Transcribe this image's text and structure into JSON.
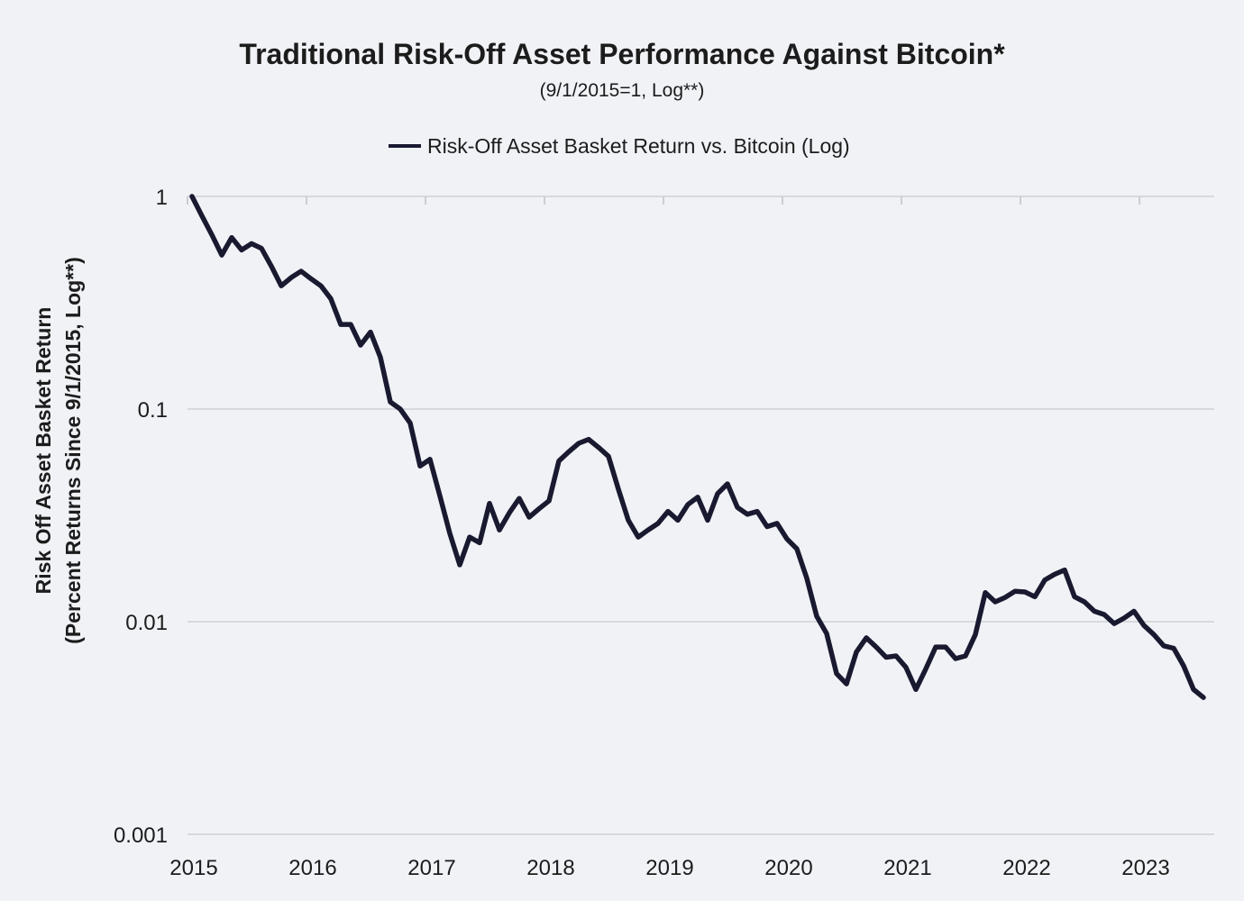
{
  "header": {
    "title": "Traditional Risk-Off Asset Performance Against Bitcoin*",
    "subtitle": "(9/1/2015=1, Log**)"
  },
  "legend": {
    "label": "Risk-Off Asset Basket Return vs. Bitcoin (Log)"
  },
  "y_axis": {
    "title_line1": "Risk Off Asset Basket Return",
    "title_line2": "(Percent Returns Since 9/1/2015, Log**)"
  },
  "colors": {
    "background": "#f1f2f6",
    "gridline": "#d8d9dd",
    "axis_tick": "#cdced4",
    "text": "#1c1c1c",
    "series": "#191930"
  },
  "chart_data": {
    "type": "line",
    "title": "Traditional Risk-Off Asset Performance Against Bitcoin*",
    "subtitle": "(9/1/2015=1, Log**)",
    "ylabel": "Risk Off Asset Basket Return (Percent Returns Since 9/1/2015, Log**)",
    "xlabel": "",
    "y_scale": "log10",
    "ylim": [
      0.001,
      1
    ],
    "y_ticks": [
      1,
      0.1,
      0.01,
      0.001
    ],
    "y_tick_labels": [
      "1",
      "0.1",
      "0.01",
      "0.001"
    ],
    "grid": "horizontal",
    "legend_position": "top-center",
    "x_freq": "monthly",
    "x_start": "2015-09",
    "x_tick_labels": [
      "2015",
      "2016",
      "2017",
      "2018",
      "2019",
      "2020",
      "2021",
      "2022",
      "2023"
    ],
    "x_tick_indices": [
      0,
      12,
      24,
      36,
      48,
      60,
      72,
      84,
      96
    ],
    "series": [
      {
        "name": "Risk-Off Asset Basket Return vs. Bitcoin (Log)",
        "color": "#191930",
        "dates": [
          "2015-09",
          "2015-10",
          "2015-11",
          "2015-12",
          "2016-01",
          "2016-02",
          "2016-03",
          "2016-04",
          "2016-05",
          "2016-06",
          "2016-07",
          "2016-08",
          "2016-09",
          "2016-10",
          "2016-11",
          "2016-12",
          "2017-01",
          "2017-02",
          "2017-03",
          "2017-04",
          "2017-05",
          "2017-06",
          "2017-07",
          "2017-08",
          "2017-09",
          "2017-10",
          "2017-11",
          "2017-12",
          "2018-01",
          "2018-02",
          "2018-03",
          "2018-04",
          "2018-05",
          "2018-06",
          "2018-07",
          "2018-08",
          "2018-09",
          "2018-10",
          "2018-11",
          "2018-12",
          "2019-01",
          "2019-02",
          "2019-03",
          "2019-04",
          "2019-05",
          "2019-06",
          "2019-07",
          "2019-08",
          "2019-09",
          "2019-10",
          "2019-11",
          "2019-12",
          "2020-01",
          "2020-02",
          "2020-03",
          "2020-04",
          "2020-05",
          "2020-06",
          "2020-07",
          "2020-08",
          "2020-09",
          "2020-10",
          "2020-11",
          "2020-12",
          "2021-01",
          "2021-02",
          "2021-03",
          "2021-04",
          "2021-05",
          "2021-06",
          "2021-07",
          "2021-08",
          "2021-09",
          "2021-10",
          "2021-11",
          "2021-12",
          "2022-01",
          "2022-02",
          "2022-03",
          "2022-04",
          "2022-05",
          "2022-06",
          "2022-07",
          "2022-08",
          "2022-09",
          "2022-10",
          "2022-11",
          "2022-12",
          "2023-01",
          "2023-02",
          "2023-03",
          "2023-04",
          "2023-05",
          "2023-06",
          "2023-07",
          "2023-08",
          "2023-09",
          "2023-10",
          "2023-11",
          "2023-12",
          "2024-01",
          "2024-02",
          "2024-03"
        ],
        "values": [
          1.0,
          0.81,
          0.66,
          0.53,
          0.64,
          0.56,
          0.6,
          0.57,
          0.47,
          0.38,
          0.415,
          0.445,
          0.41,
          0.38,
          0.33,
          0.25,
          0.25,
          0.2,
          0.23,
          0.175,
          0.108,
          0.1,
          0.086,
          0.054,
          0.058,
          0.039,
          0.026,
          0.0185,
          0.025,
          0.0235,
          0.036,
          0.027,
          0.0325,
          0.038,
          0.031,
          0.034,
          0.037,
          0.057,
          0.063,
          0.069,
          0.072,
          0.066,
          0.06,
          0.042,
          0.03,
          0.025,
          0.027,
          0.029,
          0.033,
          0.03,
          0.0355,
          0.0385,
          0.03,
          0.04,
          0.0445,
          0.0345,
          0.032,
          0.033,
          0.028,
          0.029,
          0.0245,
          0.022,
          0.016,
          0.0106,
          0.0088,
          0.0057,
          0.0051,
          0.0072,
          0.0084,
          0.0076,
          0.0068,
          0.0069,
          0.0061,
          0.0048,
          0.006,
          0.0076,
          0.0076,
          0.0067,
          0.0069,
          0.0087,
          0.0137,
          0.0124,
          0.013,
          0.0139,
          0.0138,
          0.0131,
          0.0157,
          0.0167,
          0.0175,
          0.0131,
          0.0124,
          0.0112,
          0.0108,
          0.0098,
          0.0104,
          0.0112,
          0.0096,
          0.0087,
          0.0077,
          0.0075,
          0.0062,
          0.0048,
          0.0044
        ]
      }
    ]
  }
}
